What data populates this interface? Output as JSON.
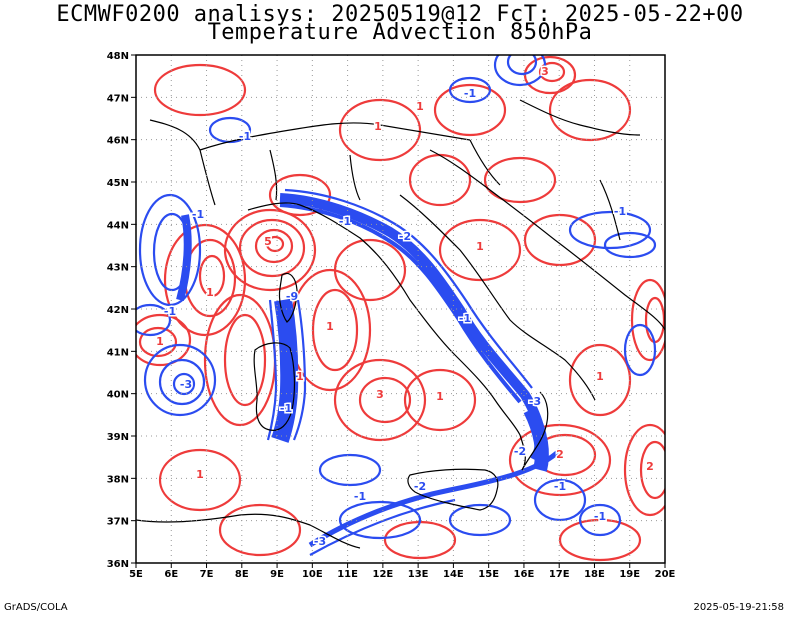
{
  "title": {
    "line1": "ECMWF0200 analisys: 20250519@12 FcT: 2025-05-22+00",
    "line2": "Temperature Advection 850hPa"
  },
  "footer": {
    "left": "GrADS/COLA",
    "right": "2025-05-19-21:58"
  },
  "map": {
    "lat_labels": [
      "48N",
      "47N",
      "46N",
      "45N",
      "44N",
      "43N",
      "42N",
      "41N",
      "40N",
      "39N",
      "38N",
      "37N",
      "36N"
    ],
    "lon_labels": [
      "5E",
      "6E",
      "7E",
      "8E",
      "9E",
      "10E",
      "11E",
      "12E",
      "13E",
      "14E",
      "15E",
      "16E",
      "17E",
      "18E",
      "19E",
      "20E"
    ],
    "lat_range": [
      36,
      48
    ],
    "lon_range": [
      5,
      20
    ],
    "grid": "dotted",
    "contour_colors": {
      "positive": "#ee3b3b",
      "negative": "#2b4cf0"
    },
    "contour_labels": [
      "-1",
      "1",
      "-2",
      "2",
      "-3",
      "3",
      "-5",
      "5",
      "-9",
      "9"
    ]
  }
}
